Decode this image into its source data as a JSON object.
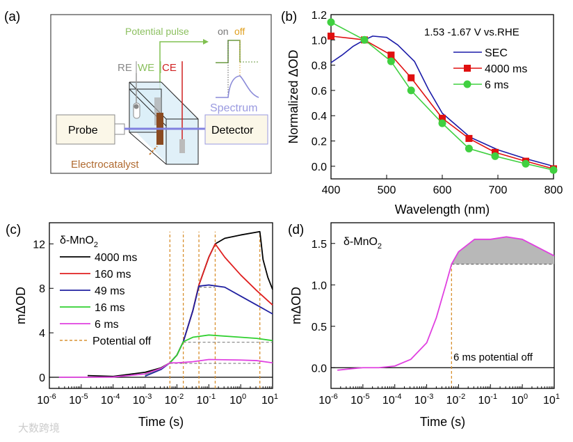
{
  "panel_labels": {
    "a": "(a)",
    "b": "(b)",
    "c": "(c)",
    "d": "(d)"
  },
  "schematic": {
    "potential_pulse": "Potential pulse",
    "on": "on",
    "off": "off",
    "re": "RE",
    "we": "WE",
    "ce": "CE",
    "spectrum": "Spectrum",
    "probe": "Probe",
    "detector": "Detector",
    "electrocatalyst": "Electrocatalyst"
  },
  "watermark": "大数跨境",
  "colors": {
    "sec": "#1a1aa8",
    "ms4000": "#e01010",
    "ms6_b": "#40d040",
    "black": "#000000",
    "red": "#e02020",
    "blue": "#2020a0",
    "green": "#30d030",
    "magenta": "#e040e0",
    "orange": "#d89030",
    "gray": "#808080"
  },
  "chart_data": [
    {
      "id": "b",
      "type": "line",
      "title": "",
      "annotation": "1.53 -1.67 V vs.RHE",
      "xlabel": "Wavelength (nm)",
      "ylabel": "Normalized ΔOD",
      "xlim": [
        400,
        800
      ],
      "ylim": [
        -0.1,
        1.2
      ],
      "xticks": [
        "400",
        "500",
        "600",
        "700",
        "800"
      ],
      "yticks": [
        "0.0",
        "0.2",
        "0.4",
        "0.6",
        "0.8",
        "1.0",
        "1.2"
      ],
      "legend_position": "top-right",
      "series": [
        {
          "name": "SEC",
          "marker": "none",
          "points": [
            [
              400,
              0.82
            ],
            [
              420,
              0.88
            ],
            [
              440,
              0.95
            ],
            [
              460,
              1.0
            ],
            [
              475,
              1.03
            ],
            [
              500,
              1.02
            ],
            [
              520,
              0.96
            ],
            [
              550,
              0.83
            ],
            [
              575,
              0.61
            ],
            [
              600,
              0.42
            ],
            [
              650,
              0.23
            ],
            [
              700,
              0.13
            ],
            [
              750,
              0.06
            ],
            [
              800,
              0.0
            ]
          ]
        },
        {
          "name": "4000 ms",
          "marker": "square",
          "points": [
            [
              400,
              1.03
            ],
            [
              460,
              1.0
            ],
            [
              508,
              0.88
            ],
            [
              544,
              0.7
            ],
            [
              600,
              0.38
            ],
            [
              648,
              0.22
            ],
            [
              695,
              0.11
            ],
            [
              750,
              0.04
            ],
            [
              800,
              -0.02
            ]
          ]
        },
        {
          "name": "6 ms",
          "marker": "circle",
          "points": [
            [
              400,
              1.14
            ],
            [
              460,
              1.0
            ],
            [
              508,
              0.83
            ],
            [
              544,
              0.6
            ],
            [
              600,
              0.34
            ],
            [
              648,
              0.14
            ],
            [
              695,
              0.08
            ],
            [
              750,
              0.02
            ],
            [
              800,
              -0.03
            ]
          ]
        }
      ]
    },
    {
      "id": "c",
      "type": "line",
      "annotation": "δ-MnO",
      "annotation_sub": "2",
      "xlabel": "Time (s)",
      "ylabel": "mΔOD",
      "xscale": "log",
      "xlim_log10": [
        -6,
        1
      ],
      "ylim": [
        -1,
        13.9
      ],
      "xtick_exponents": [
        "-6",
        "-5",
        "-4",
        "-3",
        "-2",
        "-1",
        "0",
        "1"
      ],
      "tick_base": "10",
      "yticks": [
        "0",
        "4",
        "8",
        "12"
      ],
      "legend_position": "top-left",
      "legend_off_label": "Potential off",
      "potential_off_log10": [
        -2.22,
        -1.8,
        -1.31,
        -0.8,
        0.6
      ],
      "series": [
        {
          "name": "4000 ms",
          "points": [
            [
              -4.8,
              0.15
            ],
            [
              -4,
              0.08
            ],
            [
              -3,
              0.45
            ],
            [
              -2.5,
              0.85
            ],
            [
              -2.22,
              1.3
            ],
            [
              -2,
              2
            ],
            [
              -1.8,
              3.2
            ],
            [
              -1.5,
              6
            ],
            [
              -1.31,
              8.3
            ],
            [
              -1,
              10.8
            ],
            [
              -0.8,
              12
            ],
            [
              -0.5,
              12.5
            ],
            [
              0,
              12.8
            ],
            [
              0.6,
              13.1
            ],
            [
              0.63,
              12.4
            ],
            [
              0.7,
              10.6
            ],
            [
              0.85,
              9
            ],
            [
              1,
              7.9
            ]
          ]
        },
        {
          "name": "160 ms",
          "points": [
            [
              -3,
              0.3
            ],
            [
              -2.5,
              0.8
            ],
            [
              -2.22,
              1.3
            ],
            [
              -2,
              2
            ],
            [
              -1.8,
              3.2
            ],
            [
              -1.5,
              6
            ],
            [
              -1.31,
              8.3
            ],
            [
              -1,
              10.8
            ],
            [
              -0.8,
              12
            ],
            [
              -0.5,
              10.8
            ],
            [
              0,
              9.2
            ],
            [
              0.5,
              7.8
            ],
            [
              1,
              6.5
            ]
          ]
        },
        {
          "name": "49 ms",
          "points": [
            [
              -3,
              0.1
            ],
            [
              -2.5,
              0.7
            ],
            [
              -2.22,
              1.3
            ],
            [
              -2,
              2
            ],
            [
              -1.8,
              3.2
            ],
            [
              -1.5,
              6
            ],
            [
              -1.31,
              8.2
            ],
            [
              -1,
              8.3
            ],
            [
              -0.5,
              8.1
            ],
            [
              0,
              7.3
            ],
            [
              0.5,
              6.5
            ],
            [
              1,
              5.7
            ]
          ]
        },
        {
          "name": "16 ms",
          "points": [
            [
              -3,
              0.25
            ],
            [
              -2.5,
              0.8
            ],
            [
              -2.22,
              1.3
            ],
            [
              -2,
              2
            ],
            [
              -1.8,
              3.2
            ],
            [
              -1.5,
              3.6
            ],
            [
              -1,
              3.8
            ],
            [
              0,
              3.6
            ],
            [
              0.5,
              3.5
            ],
            [
              1,
              3.3
            ]
          ]
        },
        {
          "name": "6 ms",
          "points": [
            [
              -5.7,
              0
            ],
            [
              -4,
              0.02
            ],
            [
              -3,
              0.3
            ],
            [
              -2.5,
              0.8
            ],
            [
              -2.22,
              1.3
            ],
            [
              -2,
              1.3
            ],
            [
              -1.5,
              1.4
            ],
            [
              -1,
              1.6
            ],
            [
              0,
              1.55
            ],
            [
              0.5,
              1.5
            ],
            [
              1,
              1.3
            ]
          ]
        }
      ],
      "baselines": [
        [
          -1.8,
          1,
          3.15
        ],
        [
          -2.22,
          0.6,
          1.25
        ],
        [
          -1.31,
          -0.8,
          8.1
        ]
      ]
    },
    {
      "id": "d",
      "type": "area",
      "annotation": "δ-MnO",
      "annotation_sub": "2",
      "callout": "6 ms potential off",
      "xlabel": "Time (s)",
      "ylabel": "mΔOD",
      "xscale": "log",
      "xlim_log10": [
        -6,
        1
      ],
      "ylim": [
        -0.25,
        1.75
      ],
      "xtick_exponents": [
        "-6",
        "-5",
        "-4",
        "-3",
        "-2",
        "-1",
        "0",
        "1"
      ],
      "tick_base": "10",
      "yticks": [
        "0.0",
        "0.5",
        "1.0",
        "1.5"
      ],
      "potential_off_log10": -2.22,
      "baseline": 1.25,
      "series": [
        {
          "name": "6 ms",
          "points": [
            [
              -5.8,
              -0.03
            ],
            [
              -5.3,
              -0.01
            ],
            [
              -5,
              0
            ],
            [
              -4.5,
              0
            ],
            [
              -4,
              0.02
            ],
            [
              -3.5,
              0.1
            ],
            [
              -3,
              0.3
            ],
            [
              -2.7,
              0.6
            ],
            [
              -2.4,
              1.0
            ],
            [
              -2.22,
              1.25
            ],
            [
              -2,
              1.4
            ],
            [
              -1.5,
              1.55
            ],
            [
              -1,
              1.55
            ],
            [
              -0.5,
              1.58
            ],
            [
              0,
              1.55
            ],
            [
              0.5,
              1.45
            ],
            [
              1,
              1.35
            ]
          ]
        }
      ]
    }
  ]
}
